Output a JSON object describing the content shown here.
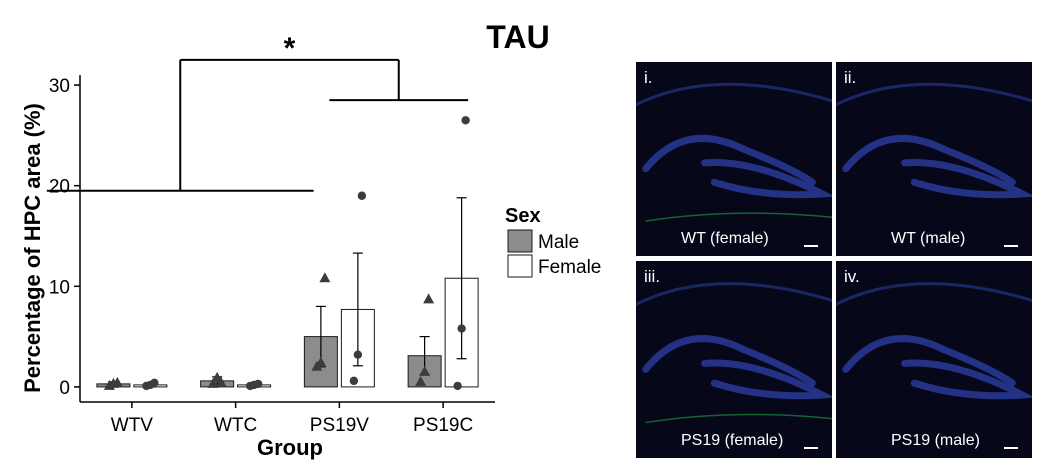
{
  "chart_data": {
    "type": "bar",
    "title": "TAU",
    "xlabel": "Group",
    "ylabel": "Percentage of HPC area (%)",
    "ylim": [
      -1.5,
      31
    ],
    "yticks": [
      0,
      10,
      20,
      30
    ],
    "categories": [
      "WTV",
      "WTC",
      "PS19V",
      "PS19C"
    ],
    "legend_title": "Sex",
    "legend_position": "right",
    "colors": {
      "Male": "#8c8c8c",
      "Female": "#ffffff",
      "stroke": "#1a1a1a",
      "point": "#3c3c3c"
    },
    "series": [
      {
        "name": "Male",
        "values": [
          0.3,
          0.6,
          5.0,
          3.1
        ],
        "errors": [
          0.2,
          0.4,
          3.0,
          1.9
        ],
        "points": [
          [
            0.1,
            0.3,
            0.4
          ],
          [
            0.3,
            0.9,
            0.4
          ],
          [
            2.0,
            2.4,
            10.8
          ],
          [
            0.5,
            1.5,
            8.7
          ]
        ],
        "marker": "triangle"
      },
      {
        "name": "Female",
        "values": [
          0.2,
          0.2,
          7.7,
          10.8
        ],
        "errors": [
          0.2,
          0.1,
          5.6,
          8.0
        ],
        "points": [
          [
            0.1,
            0.2,
            0.4
          ],
          [
            0.1,
            0.2,
            0.3
          ],
          [
            0.6,
            3.2,
            19.0
          ],
          [
            0.1,
            5.8,
            26.5
          ]
        ],
        "marker": "circle"
      }
    ],
    "significance": {
      "label": "*",
      "left_bracket_y": 19.5,
      "right_bracket_y": 28.5,
      "top_y": 32.5
    }
  },
  "panels": [
    {
      "tag": "i.",
      "caption": "WT (female)",
      "glow": "#2a3a9a",
      "green_line": true
    },
    {
      "tag": "ii.",
      "caption": "WT (male)",
      "glow": "#2a3a9a",
      "green_line": false
    },
    {
      "tag": "iii.",
      "caption": "PS19 (female)",
      "glow": "#2a3a9a",
      "green_line": true
    },
    {
      "tag": "iv.",
      "caption": "PS19 (male)",
      "glow": "#2a3a9a",
      "green_line": false
    }
  ]
}
